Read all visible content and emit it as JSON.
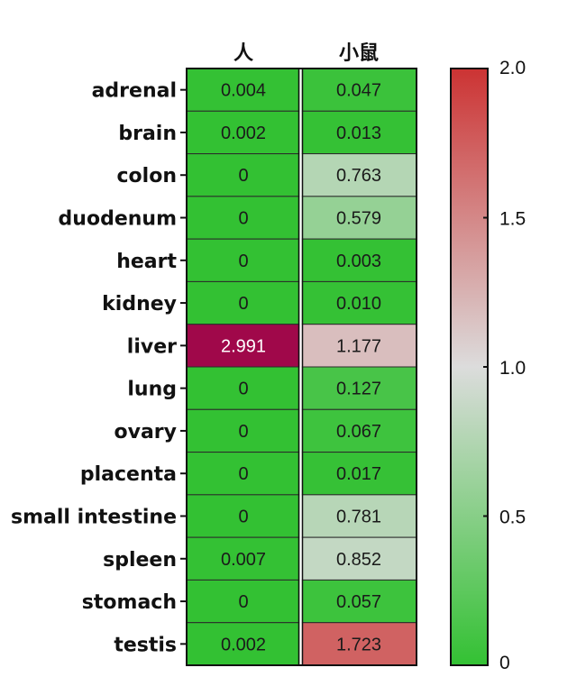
{
  "chart_data": {
    "type": "heatmap",
    "columns": [
      "人",
      "小鼠"
    ],
    "rows": [
      "adrenal",
      "brain",
      "colon",
      "duodenum",
      "heart",
      "kidney",
      "liver",
      "lung",
      "ovary",
      "placenta",
      "small intestine",
      "spleen",
      "stomach",
      "testis"
    ],
    "values": [
      [
        0.004,
        0.047
      ],
      [
        0.002,
        0.013
      ],
      [
        0,
        0.763
      ],
      [
        0,
        0.579
      ],
      [
        0,
        0.003
      ],
      [
        0,
        0.01
      ],
      [
        2.991,
        1.177
      ],
      [
        0,
        0.127
      ],
      [
        0,
        0.067
      ],
      [
        0,
        0.017
      ],
      [
        0,
        0.781
      ],
      [
        0.007,
        0.852
      ],
      [
        0,
        0.057
      ],
      [
        0.002,
        1.723
      ]
    ],
    "labels": [
      [
        "0.004",
        "0.047"
      ],
      [
        "0.002",
        "0.013"
      ],
      [
        "0",
        "0.763"
      ],
      [
        "0",
        "0.579"
      ],
      [
        "0",
        "0.003"
      ],
      [
        "0",
        "0.010"
      ],
      [
        "2.991",
        "1.177"
      ],
      [
        "0",
        "0.127"
      ],
      [
        "0",
        "0.067"
      ],
      [
        "0",
        "0.017"
      ],
      [
        "0",
        "0.781"
      ],
      [
        "0.007",
        "0.852"
      ],
      [
        "0",
        "0.057"
      ],
      [
        "0.002",
        "1.723"
      ]
    ],
    "color_scale": {
      "range": [
        0,
        2.0
      ],
      "colors": {
        "low": "#33c133",
        "mid": "#dcdcdc",
        "high": "#cc3333",
        "overflow": "#a0084a"
      },
      "ticks": [
        "0",
        "0.5",
        "1.0",
        "1.5",
        "2.0"
      ]
    }
  }
}
